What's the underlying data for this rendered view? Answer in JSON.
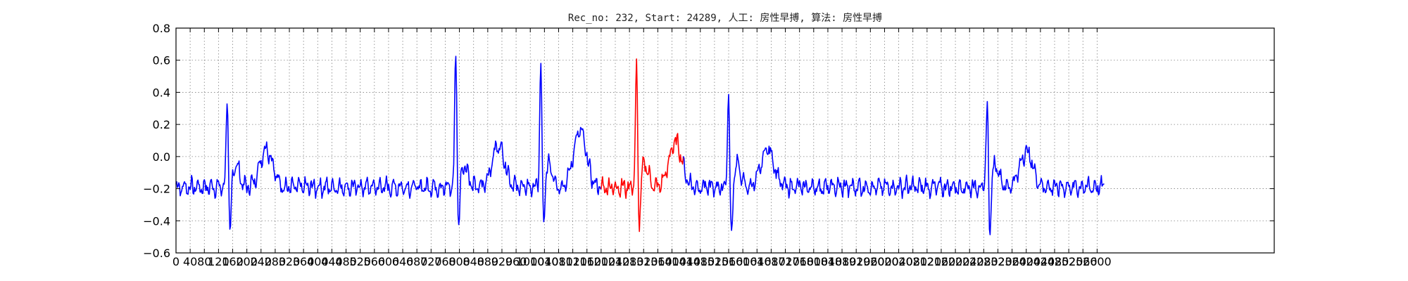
{
  "chart_data": {
    "type": "line",
    "title": "Rec_no: 232, Start: 24289, 人工: 房性早搏, 算法: 房性早搏",
    "xlabel": "",
    "ylabel": "",
    "xlim": [
      0,
      3100
    ],
    "ylim": [
      -0.6,
      0.8
    ],
    "grid": true,
    "y_ticks": [
      -0.6,
      -0.4,
      -0.2,
      0.0,
      0.2,
      0.4,
      0.6,
      0.8
    ],
    "y_tick_labels": [
      "−0.6",
      "−0.4",
      "−0.2",
      "0.0",
      "0.2",
      "0.4",
      "0.6",
      "0.8"
    ],
    "x_tick_step": 40,
    "x_tick_max": 2600,
    "colors": {
      "normal": "#0000ff",
      "highlight": "#ff0000",
      "axes": "#000000",
      "grid": "#808080"
    },
    "highlight_range": [
      1200,
      1430
    ],
    "baseline": -0.19,
    "beats": [
      {
        "t": 145,
        "r": 0.4,
        "s": -0.57,
        "tw": 0.05,
        "td": 110
      },
      {
        "t": 790,
        "r": 0.67,
        "s": -0.52,
        "tw": 0.07,
        "td": 120
      },
      {
        "t": 1030,
        "r": 0.59,
        "s": -0.5,
        "tw": 0.16,
        "td": 110
      },
      {
        "t": 1300,
        "r": 0.58,
        "s": -0.5,
        "tw": 0.09,
        "td": 110
      },
      {
        "t": 1560,
        "r": 0.44,
        "s": -0.6,
        "tw": 0.05,
        "td": 110
      },
      {
        "t": 2290,
        "r": 0.35,
        "s": -0.53,
        "tw": 0.03,
        "td": 110
      }
    ],
    "signal_x_range": [
      0,
      2620
    ]
  }
}
